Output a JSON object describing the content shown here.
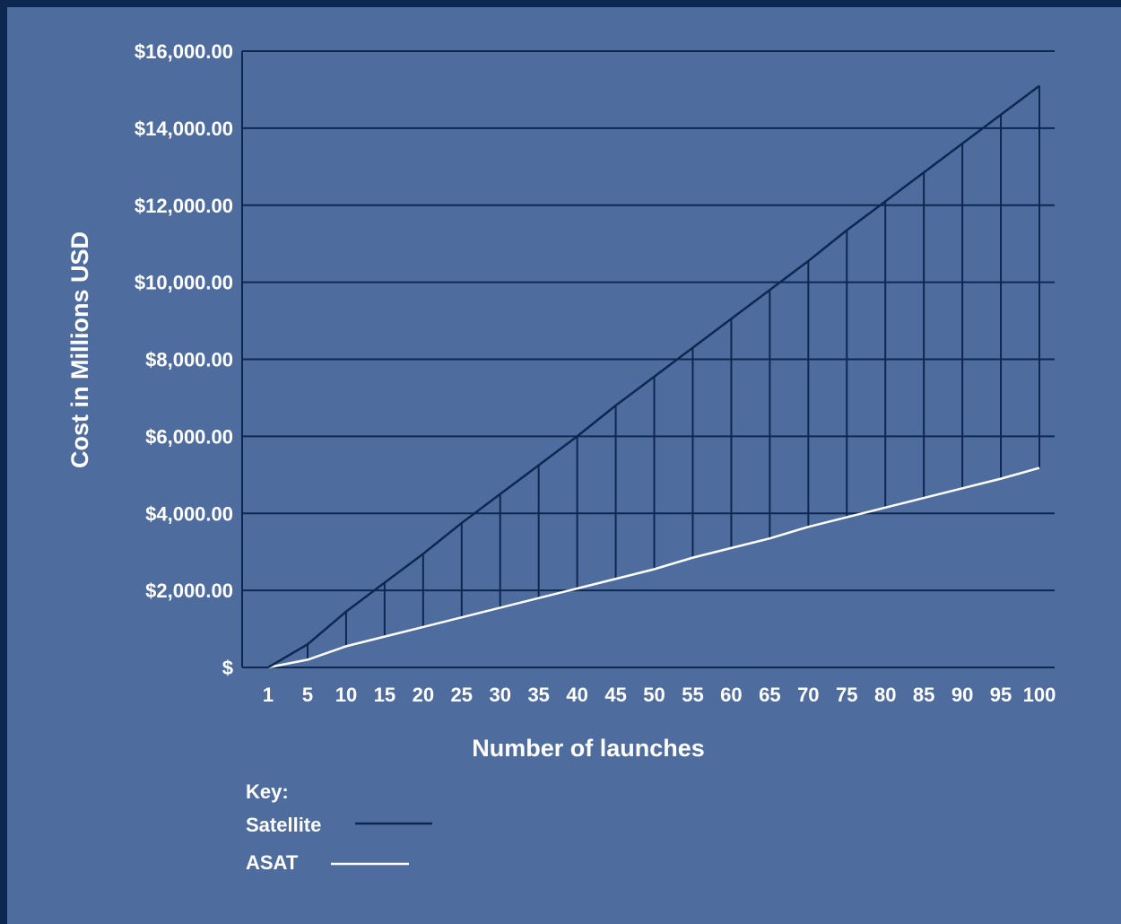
{
  "chart_data": {
    "type": "line",
    "xlabel": "Number of launches",
    "ylabel": "Cost in Millions USD",
    "x": [
      1,
      5,
      10,
      15,
      20,
      25,
      30,
      35,
      40,
      45,
      50,
      55,
      60,
      65,
      70,
      75,
      80,
      85,
      90,
      95,
      100
    ],
    "x_tick_labels": [
      "1",
      "5",
      "10",
      "15",
      "20",
      "25",
      "30",
      "35",
      "40",
      "45",
      "50",
      "55",
      "60",
      "65",
      "70",
      "75",
      "80",
      "85",
      "90",
      "95",
      "100"
    ],
    "y_tick_labels": [
      "$",
      "$2,000.00",
      "$4,000.00",
      "$6,000.00",
      "$8,000.00",
      "$10,000.00",
      "$12,000.00",
      "$14,000.00",
      "$16,000.00"
    ],
    "y_ticks": [
      0,
      2000,
      4000,
      6000,
      8000,
      10000,
      12000,
      14000,
      16000
    ],
    "ylim": [
      0,
      16000
    ],
    "grid": true,
    "series": [
      {
        "name": "Satellite",
        "color": "#0d2850",
        "values": [
          0,
          600,
          1450,
          2200,
          2950,
          3750,
          4500,
          5250,
          6000,
          6800,
          7550,
          8300,
          9050,
          9800,
          10550,
          11350,
          12100,
          12850,
          13600,
          14350,
          15100
        ]
      },
      {
        "name": "ASAT",
        "color": "#ffffff",
        "values": [
          0,
          200,
          550,
          800,
          1050,
          1300,
          1550,
          1800,
          2050,
          2300,
          2550,
          2850,
          3100,
          3350,
          3650,
          3900,
          4150,
          4400,
          4650,
          4900,
          5180
        ]
      }
    ],
    "legend": {
      "title": "Key:",
      "placement": "bottom-left"
    }
  }
}
